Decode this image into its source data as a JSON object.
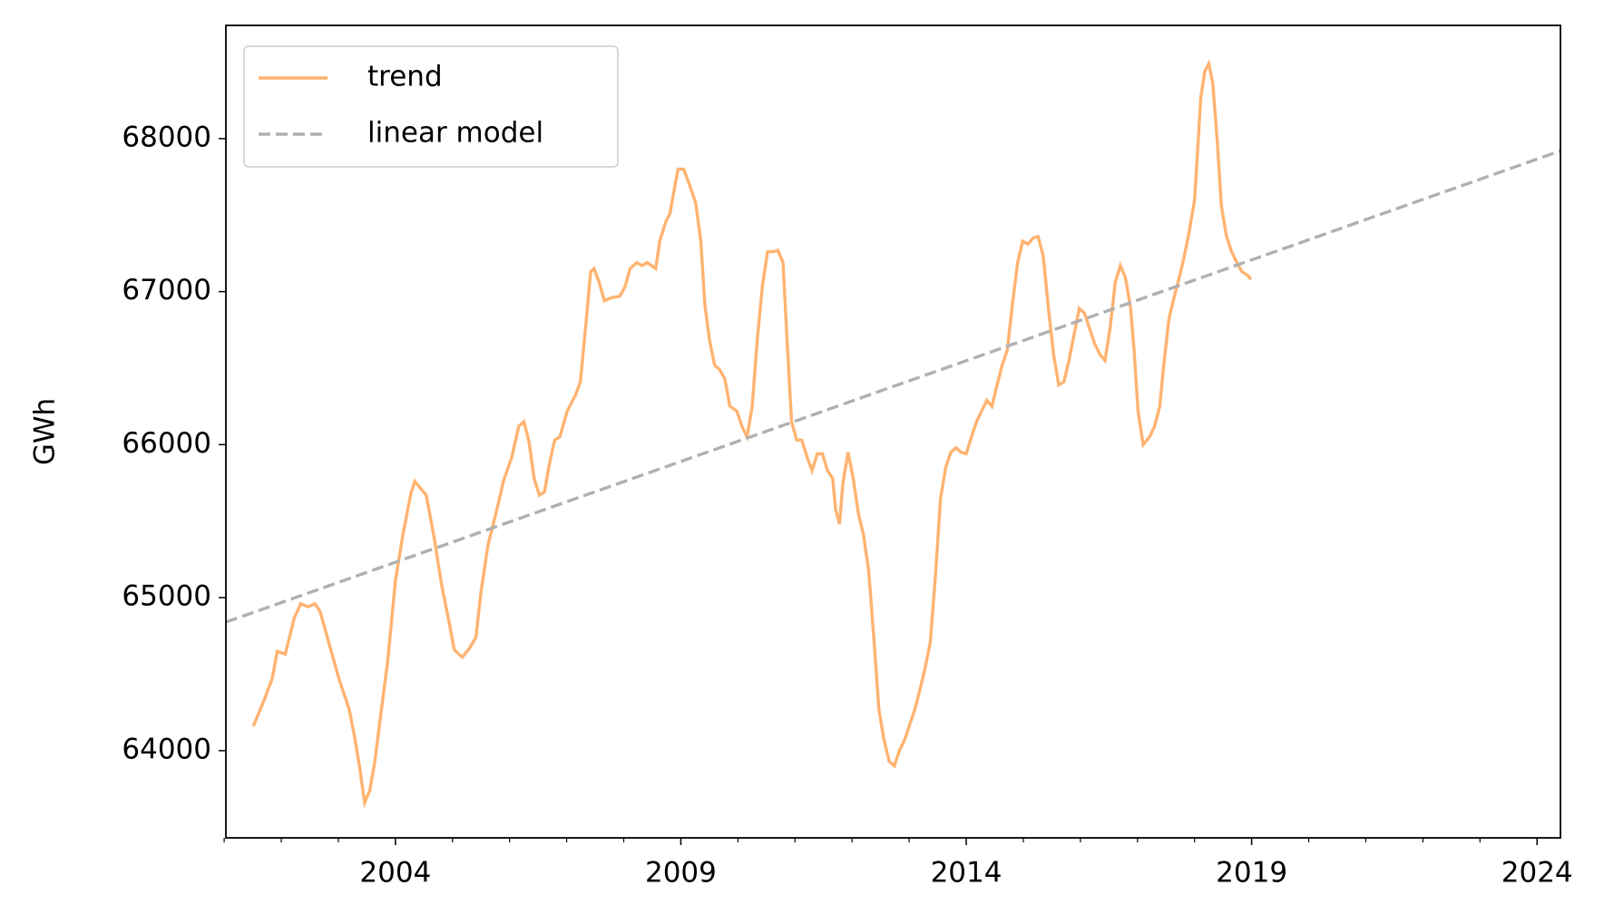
{
  "chart_data": {
    "type": "line",
    "ylabel": "GWh",
    "legend": "upper left",
    "xlim": [
      2001.03,
      2024.41
    ],
    "ylim": [
      63430,
      68740
    ],
    "xticks": [
      2004,
      2009,
      2014,
      2019,
      2024
    ],
    "xminorticks": [
      2001,
      2002,
      2003,
      2005,
      2006,
      2007,
      2008,
      2010,
      2011,
      2012,
      2013,
      2015,
      2016,
      2017,
      2018,
      2020,
      2021,
      2022,
      2023
    ],
    "yticks": [
      64000,
      65000,
      66000,
      67000,
      68000
    ],
    "series": [
      {
        "name": "trend",
        "color": "#ffb370",
        "dash": false,
        "x": [
          2001.51,
          2001.71,
          2001.84,
          2001.93,
          2002.07,
          2002.23,
          2002.34,
          2002.47,
          2002.59,
          2002.68,
          2002.83,
          2003.01,
          2003.19,
          2003.28,
          2003.37,
          2003.46,
          2003.55,
          2003.64,
          2003.73,
          2003.86,
          2004.0,
          2004.13,
          2004.27,
          2004.34,
          2004.45,
          2004.54,
          2004.67,
          2004.81,
          2004.94,
          2005.03,
          2005.17,
          2005.3,
          2005.41,
          2005.5,
          2005.62,
          2005.8,
          2005.89,
          2006.04,
          2006.16,
          2006.25,
          2006.34,
          2006.43,
          2006.52,
          2006.61,
          2006.7,
          2006.79,
          2006.88,
          2007.01,
          2007.15,
          2007.24,
          2007.33,
          2007.42,
          2007.48,
          2007.57,
          2007.66,
          2007.78,
          2007.93,
          2008.02,
          2008.11,
          2008.23,
          2008.32,
          2008.41,
          2008.56,
          2008.63,
          2008.74,
          2008.81,
          2008.9,
          2008.95,
          2009.05,
          2009.14,
          2009.26,
          2009.35,
          2009.42,
          2009.5,
          2009.59,
          2009.68,
          2009.77,
          2009.86,
          2009.98,
          2010.07,
          2010.16,
          2010.25,
          2010.34,
          2010.43,
          2010.52,
          2010.61,
          2010.7,
          2010.79,
          2010.86,
          2010.94,
          2011.03,
          2011.12,
          2011.21,
          2011.3,
          2011.39,
          2011.48,
          2011.57,
          2011.66,
          2011.71,
          2011.78,
          2011.84,
          2011.93,
          2012.02,
          2012.11,
          2012.2,
          2012.29,
          2012.38,
          2012.47,
          2012.56,
          2012.65,
          2012.74,
          2012.83,
          2012.92,
          2013.01,
          2013.1,
          2013.19,
          2013.28,
          2013.37,
          2013.46,
          2013.55,
          2013.64,
          2013.73,
          2013.82,
          2013.91,
          2014.0,
          2014.09,
          2014.18,
          2014.27,
          2014.36,
          2014.45,
          2014.54,
          2014.63,
          2014.72,
          2014.81,
          2014.9,
          2014.99,
          2015.08,
          2015.17,
          2015.26,
          2015.35,
          2015.44,
          2015.53,
          2015.62,
          2015.71,
          2015.8,
          2015.89,
          2015.98,
          2016.07,
          2016.16,
          2016.25,
          2016.34,
          2016.43,
          2016.52,
          2016.61,
          2016.7,
          2016.79,
          2016.88,
          2016.94,
          2017.01,
          2017.1,
          2017.21,
          2017.3,
          2017.39,
          2017.46,
          2017.55,
          2017.64,
          2017.73,
          2017.82,
          2017.91,
          2018.0,
          2018.05,
          2018.11,
          2018.18,
          2018.25,
          2018.32,
          2018.4,
          2018.47,
          2018.56,
          2018.65,
          2018.74,
          2018.83,
          2018.92,
          2018.99
        ],
        "values": [
          64160,
          64340,
          64470,
          64650,
          64630,
          64870,
          64960,
          64940,
          64960,
          64910,
          64710,
          64470,
          64270,
          64100,
          63900,
          63660,
          63740,
          63930,
          64200,
          64570,
          65110,
          65410,
          65680,
          65760,
          65710,
          65670,
          65410,
          65080,
          64840,
          64660,
          64610,
          64670,
          64740,
          65040,
          65340,
          65610,
          65760,
          65920,
          66120,
          66150,
          66020,
          65780,
          65670,
          65690,
          65880,
          66030,
          66050,
          66220,
          66320,
          66410,
          66760,
          67130,
          67150,
          67060,
          66940,
          66960,
          66970,
          67030,
          67150,
          67190,
          67170,
          67190,
          67150,
          67330,
          67460,
          67510,
          67700,
          67800,
          67800,
          67710,
          67580,
          67330,
          66920,
          66690,
          66520,
          66490,
          66430,
          66250,
          66220,
          66120,
          66050,
          66250,
          66690,
          67040,
          67260,
          67260,
          67270,
          67190,
          66690,
          66150,
          66030,
          66030,
          65920,
          65830,
          65940,
          65940,
          65830,
          65780,
          65580,
          65480,
          65750,
          65950,
          65780,
          65550,
          65410,
          65180,
          64740,
          64270,
          64070,
          63930,
          63900,
          64000,
          64070,
          64170,
          64270,
          64400,
          64540,
          64710,
          65140,
          65650,
          65850,
          65950,
          65980,
          65950,
          65940,
          66050,
          66150,
          66220,
          66290,
          66250,
          66390,
          66520,
          66620,
          66920,
          67190,
          67330,
          67310,
          67350,
          67360,
          67230,
          66890,
          66590,
          66390,
          66410,
          66550,
          66720,
          66890,
          66860,
          66760,
          66660,
          66590,
          66550,
          66760,
          67060,
          67170,
          67090,
          66890,
          66620,
          66220,
          66000,
          66050,
          66120,
          66250,
          66520,
          66820,
          66960,
          67090,
          67230,
          67400,
          67600,
          67900,
          68270,
          68440,
          68490,
          68360,
          67970,
          67560,
          67360,
          67260,
          67190,
          67130,
          67110,
          67080
        ]
      },
      {
        "name": "linear model",
        "color": "#b0b0b0",
        "dash": true,
        "x": [
          2001.03,
          2024.41
        ],
        "values": [
          64840,
          67920
        ]
      }
    ]
  }
}
